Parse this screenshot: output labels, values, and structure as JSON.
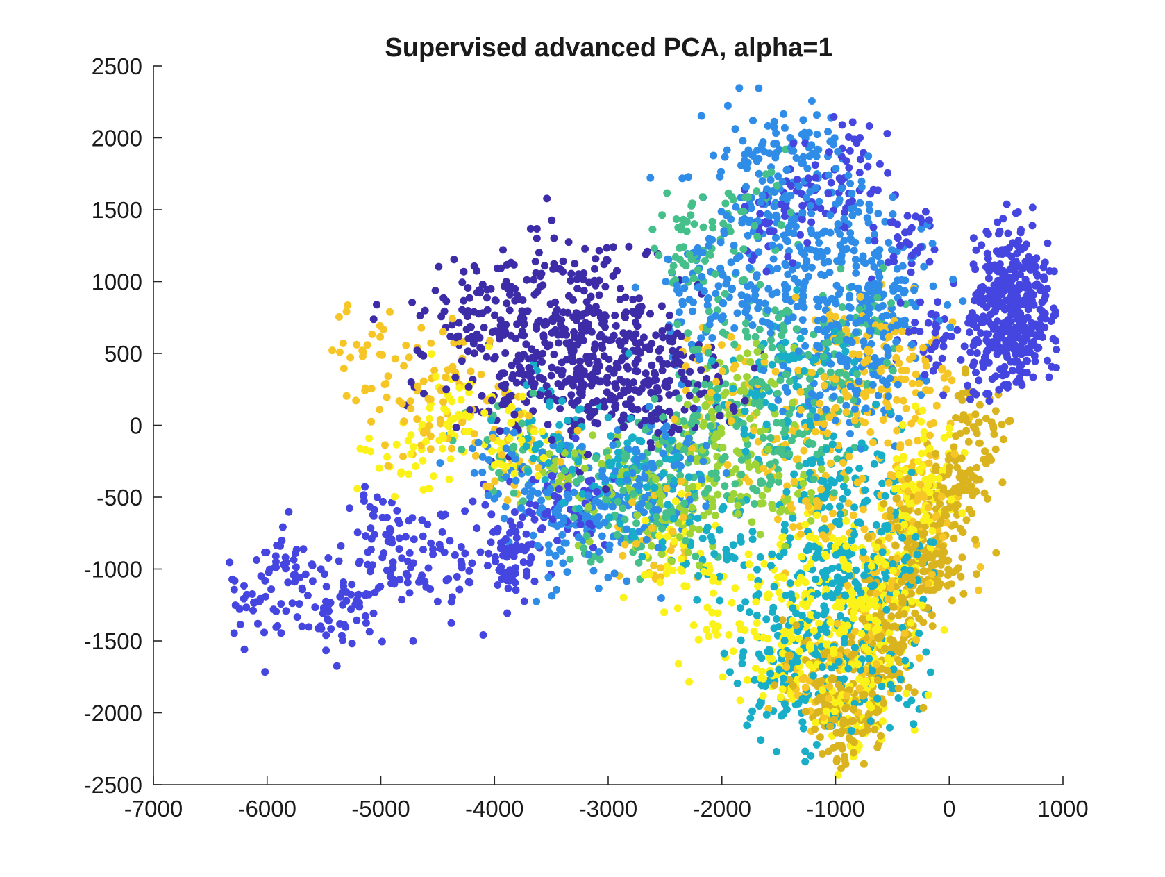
{
  "chart_data": {
    "type": "scatter",
    "title": "Supervised advanced PCA, alpha=1",
    "xlabel": "",
    "ylabel": "",
    "xlim": [
      -7000,
      1000
    ],
    "ylim": [
      -2500,
      2500
    ],
    "x_ticks": [
      -7000,
      -6000,
      -5000,
      -4000,
      -3000,
      -2000,
      -1000,
      0,
      1000
    ],
    "y_ticks": [
      -2500,
      -2000,
      -1500,
      -1000,
      -500,
      0,
      500,
      1000,
      1500,
      2000,
      2500
    ],
    "x_tick_labels": [
      "-7000",
      "-6000",
      "-5000",
      "-4000",
      "-3000",
      "-2000",
      "-1000",
      "0",
      "1000"
    ],
    "y_tick_labels": [
      "-2500",
      "-2000",
      "-1500",
      "-1000",
      "-500",
      "0",
      "500",
      "1000",
      "1500",
      "2000",
      "2500"
    ],
    "grid": false,
    "legend": "none",
    "marker": "filled-circle",
    "series": [
      {
        "color": "#3c2ca8",
        "values": [
          [
            -3600,
            700
          ],
          [
            -3400,
            400
          ],
          [
            -3200,
            600
          ],
          [
            -3000,
            300
          ],
          [
            -2800,
            650
          ],
          [
            -3800,
            900
          ],
          [
            -3100,
            800
          ],
          [
            -2600,
            500
          ],
          [
            -3500,
            200
          ],
          [
            -2900,
            150
          ],
          [
            -4000,
            500
          ],
          [
            -3300,
            100
          ],
          [
            -2700,
            350
          ],
          [
            -3700,
            550
          ],
          [
            -3900,
            300
          ],
          [
            -2500,
            250
          ],
          [
            -4200,
            750
          ],
          [
            -3550,
            1100
          ],
          [
            -3250,
            950
          ],
          [
            -4400,
            850
          ],
          [
            -2950,
            500
          ],
          [
            -3450,
            650
          ],
          [
            -3150,
            250
          ],
          [
            -2650,
            50
          ]
        ],
        "spread": [
          650,
          320
        ],
        "count": 650
      },
      {
        "color": "#4545e0",
        "values": [
          [
            500,
            800
          ],
          [
            600,
            700
          ],
          [
            400,
            900
          ],
          [
            700,
            600
          ],
          [
            550,
            1100
          ],
          [
            450,
            500
          ],
          [
            650,
            950
          ],
          [
            350,
            700
          ],
          [
            750,
            850
          ],
          [
            300,
            400
          ],
          [
            800,
            750
          ],
          [
            500,
            1200
          ],
          [
            -200,
            600
          ],
          [
            -400,
            1300
          ],
          [
            -800,
            1800
          ],
          [
            -1200,
            1600
          ],
          [
            -1600,
            1400
          ],
          [
            -3900,
            -800
          ],
          [
            -3600,
            -600
          ],
          [
            -4400,
            -900
          ],
          [
            -4800,
            -1000
          ],
          [
            -5200,
            -1200
          ],
          [
            -5800,
            -1000
          ],
          [
            -6100,
            -1200
          ],
          [
            -5500,
            -1300
          ],
          [
            -5000,
            -700
          ],
          [
            -3200,
            -500
          ],
          [
            -3800,
            -1000
          ]
        ],
        "spread": [
          240,
          300
        ],
        "count": 950
      },
      {
        "color": "#2f8de8",
        "values": [
          [
            -1500,
            1500
          ],
          [
            -1200,
            1200
          ],
          [
            -800,
            900
          ],
          [
            -1800,
            1000
          ],
          [
            -1000,
            1500
          ],
          [
            -600,
            1100
          ],
          [
            -1400,
            800
          ],
          [
            -2000,
            1200
          ],
          [
            -900,
            600
          ],
          [
            -1700,
            1800
          ],
          [
            -400,
            800
          ],
          [
            -1300,
            1900
          ],
          [
            -2200,
            800
          ],
          [
            -700,
            300
          ],
          [
            -1100,
            400
          ],
          [
            -3400,
            -500
          ],
          [
            -3000,
            -600
          ],
          [
            -2600,
            -400
          ],
          [
            -3800,
            -300
          ],
          [
            -2400,
            -200
          ],
          [
            -3200,
            -800
          ]
        ],
        "spread": [
          420,
          380
        ],
        "count": 900
      },
      {
        "color": "#18aec8",
        "values": [
          [
            -1000,
            -1500
          ],
          [
            -800,
            -1200
          ],
          [
            -1200,
            -1000
          ],
          [
            -600,
            -1700
          ],
          [
            -1400,
            -1300
          ],
          [
            -900,
            -800
          ],
          [
            -1500,
            -1700
          ],
          [
            -700,
            -400
          ],
          [
            -1100,
            -300
          ],
          [
            -400,
            -900
          ],
          [
            -2000,
            -900
          ],
          [
            -1300,
            -1900
          ],
          [
            -2500,
            -500
          ],
          [
            -3000,
            -300
          ],
          [
            -3500,
            -100
          ],
          [
            -1700,
            200
          ],
          [
            -1200,
            500
          ]
        ],
        "spread": [
          380,
          380
        ],
        "count": 700
      },
      {
        "color": "#45c08a",
        "values": [
          [
            -2200,
            -100
          ],
          [
            -1800,
            -300
          ],
          [
            -1400,
            100
          ],
          [
            -2600,
            -500
          ],
          [
            -1000,
            300
          ],
          [
            -2000,
            400
          ],
          [
            -1600,
            700
          ],
          [
            -2400,
            -200
          ],
          [
            -3000,
            -400
          ],
          [
            -1200,
            -200
          ],
          [
            -800,
            800
          ],
          [
            -2100,
            1000
          ],
          [
            -1700,
            1500
          ],
          [
            -3800,
            -200
          ],
          [
            -2800,
            -700
          ],
          [
            -2300,
            1300
          ]
        ],
        "spread": [
          380,
          330
        ],
        "count": 480
      },
      {
        "color": "#9ed437",
        "values": [
          [
            -2200,
            -200
          ],
          [
            -2000,
            -500
          ],
          [
            -2600,
            -400
          ],
          [
            -1800,
            -100
          ],
          [
            -2400,
            -700
          ],
          [
            -3000,
            -500
          ],
          [
            -1700,
            300
          ],
          [
            -3400,
            -300
          ],
          [
            -2100,
            100
          ],
          [
            -1400,
            -500
          ]
        ],
        "spread": [
          320,
          260
        ],
        "count": 260
      },
      {
        "color": "#f5c625",
        "values": [
          [
            -400,
            -300
          ],
          [
            -800,
            200
          ],
          [
            -1000,
            -500
          ],
          [
            -200,
            -700
          ],
          [
            -600,
            -1000
          ],
          [
            -1200,
            0
          ],
          [
            -300,
            200
          ],
          [
            -900,
            500
          ],
          [
            -1500,
            -300
          ],
          [
            -700,
            -1500
          ],
          [
            -1100,
            -1800
          ],
          [
            -500,
            600
          ],
          [
            -2000,
            300
          ],
          [
            -4300,
            300
          ],
          [
            -4700,
            100
          ],
          [
            -5000,
            500
          ],
          [
            -3800,
            -200
          ],
          [
            -2600,
            -800
          ]
        ],
        "spread": [
          360,
          360
        ],
        "count": 600
      },
      {
        "color": "#fbf21a",
        "values": [
          [
            -800,
            -1400
          ],
          [
            -1000,
            -1700
          ],
          [
            -600,
            -1100
          ],
          [
            -400,
            -800
          ],
          [
            -1200,
            -1500
          ],
          [
            -900,
            -2000
          ],
          [
            -300,
            -500
          ],
          [
            -1400,
            -1100
          ],
          [
            -700,
            -1800
          ],
          [
            -500,
            -1300
          ],
          [
            -1100,
            -900
          ],
          [
            -1600,
            -1600
          ],
          [
            -200,
            -300
          ],
          [
            -4300,
            100
          ],
          [
            -4700,
            -200
          ],
          [
            -3800,
            -100
          ],
          [
            -2500,
            -900
          ],
          [
            -2000,
            -1300
          ]
        ],
        "spread": [
          330,
          330
        ],
        "count": 650
      },
      {
        "color": "#d9b41e",
        "values": [
          [
            -500,
            -1500
          ],
          [
            -700,
            -1800
          ],
          [
            -300,
            -1200
          ],
          [
            -100,
            -900
          ],
          [
            -900,
            -2000
          ],
          [
            -400,
            -700
          ],
          [
            0,
            -500
          ],
          [
            -600,
            -1300
          ],
          [
            -200,
            -1000
          ],
          [
            100,
            -300
          ],
          [
            -1000,
            -2100
          ],
          [
            300,
            0
          ],
          [
            -1200,
            -1700
          ]
        ],
        "spread": [
          260,
          300
        ],
        "count": 550
      }
    ]
  }
}
